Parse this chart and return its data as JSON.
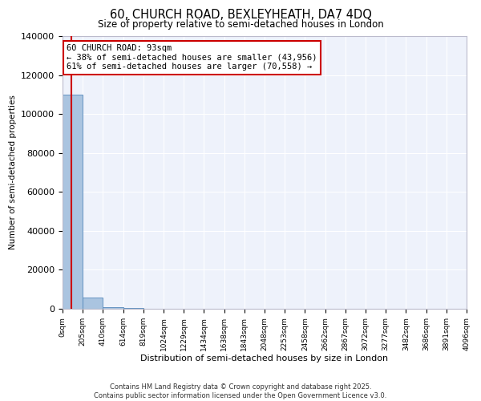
{
  "title": "60, CHURCH ROAD, BEXLEYHEATH, DA7 4DQ",
  "subtitle": "Size of property relative to semi-detached houses in London",
  "xlabel": "Distribution of semi-detached houses by size in London",
  "ylabel": "Number of semi-detached properties",
  "property_size": 93,
  "annotation_text": "60 CHURCH ROAD: 93sqm\n← 38% of semi-detached houses are smaller (43,956)\n61% of semi-detached houses are larger (70,558) →",
  "bar_edges": [
    0,
    205,
    410,
    614,
    819,
    1024,
    1229,
    1434,
    1638,
    1843,
    2048,
    2253,
    2458,
    2662,
    2867,
    3072,
    3277,
    3482,
    3686,
    3891,
    4096
  ],
  "bar_heights": [
    110000,
    5800,
    900,
    220,
    130,
    80,
    60,
    45,
    35,
    25,
    20,
    18,
    15,
    12,
    10,
    9,
    8,
    7,
    6,
    5
  ],
  "bar_color": "#aac4e0",
  "bar_edge_color": "#5588bb",
  "vline_color": "#cc0000",
  "annotation_box_color": "#cc0000",
  "background_color": "#eef2fb",
  "ylim": [
    0,
    140000
  ],
  "yticks": [
    0,
    20000,
    40000,
    60000,
    80000,
    100000,
    120000,
    140000
  ],
  "ytick_labels": [
    "0",
    "20000",
    "40000",
    "60000",
    "80000",
    "100000",
    "120000",
    "140000"
  ],
  "footer": "Contains HM Land Registry data © Crown copyright and database right 2025.\nContains public sector information licensed under the Open Government Licence v3.0.",
  "xtick_labels": [
    "0sqm",
    "205sqm",
    "410sqm",
    "614sqm",
    "819sqm",
    "1024sqm",
    "1229sqm",
    "1434sqm",
    "1638sqm",
    "1843sqm",
    "2048sqm",
    "2253sqm",
    "2458sqm",
    "2662sqm",
    "2867sqm",
    "3072sqm",
    "3277sqm",
    "3482sqm",
    "3686sqm",
    "3891sqm",
    "4096sqm"
  ]
}
